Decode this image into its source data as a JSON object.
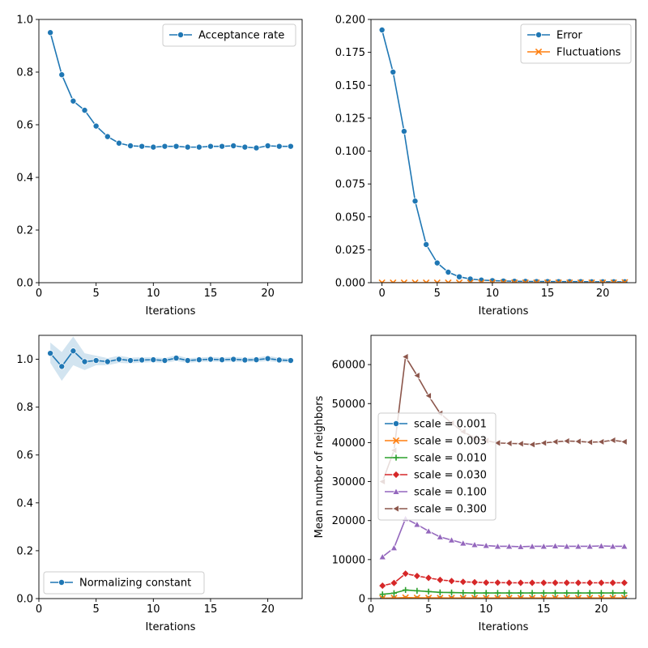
{
  "chart_data": [
    {
      "id": "acc",
      "type": "line",
      "title": "",
      "xlabel": "Iterations",
      "ylabel": "",
      "xlim": [
        0,
        23
      ],
      "ylim": [
        0,
        1
      ],
      "xticks": [
        0,
        5,
        10,
        15,
        20
      ],
      "yticks": [
        0.0,
        0.2,
        0.4,
        0.6,
        0.8,
        1.0
      ],
      "ytick_labels": [
        "0.0",
        "0.2",
        "0.4",
        "0.6",
        "0.8",
        "1.0"
      ],
      "legend_position": "upper right",
      "series": [
        {
          "name": "Acceptance rate",
          "color": "#1f77b4",
          "marker": "circle",
          "x": [
            1,
            2,
            3,
            4,
            5,
            6,
            7,
            8,
            9,
            10,
            11,
            12,
            13,
            14,
            15,
            16,
            17,
            18,
            19,
            20,
            21,
            22
          ],
          "values": [
            0.95,
            0.79,
            0.69,
            0.655,
            0.595,
            0.555,
            0.53,
            0.52,
            0.518,
            0.515,
            0.518,
            0.518,
            0.515,
            0.515,
            0.518,
            0.518,
            0.52,
            0.515,
            0.512,
            0.52,
            0.518,
            0.518
          ]
        }
      ]
    },
    {
      "id": "err",
      "type": "line",
      "title": "",
      "xlabel": "Iterations",
      "ylabel": "",
      "xlim": [
        -1,
        23
      ],
      "ylim": [
        0,
        0.2
      ],
      "xticks": [
        0,
        5,
        10,
        15,
        20
      ],
      "yticks": [
        0.0,
        0.025,
        0.05,
        0.075,
        0.1,
        0.125,
        0.15,
        0.175,
        0.2
      ],
      "ytick_labels": [
        "0.000",
        "0.025",
        "0.050",
        "0.075",
        "0.100",
        "0.125",
        "0.150",
        "0.175",
        "0.200"
      ],
      "legend_position": "upper right",
      "series": [
        {
          "name": "Error",
          "color": "#1f77b4",
          "marker": "circle",
          "x": [
            0,
            1,
            2,
            3,
            4,
            5,
            6,
            7,
            8,
            9,
            10,
            11,
            12,
            13,
            14,
            15,
            16,
            17,
            18,
            19,
            20,
            21,
            22
          ],
          "values": [
            0.192,
            0.16,
            0.115,
            0.062,
            0.029,
            0.015,
            0.008,
            0.0045,
            0.0028,
            0.002,
            0.0016,
            0.0013,
            0.0011,
            0.001,
            0.0009,
            0.0009,
            0.0008,
            0.0008,
            0.0008,
            0.0007,
            0.0007,
            0.0007,
            0.0007
          ]
        },
        {
          "name": "Fluctuations",
          "color": "#ff7f0e",
          "marker": "x",
          "x": [
            0,
            1,
            2,
            3,
            4,
            5,
            6,
            7,
            8,
            9,
            10,
            11,
            12,
            13,
            14,
            15,
            16,
            17,
            18,
            19,
            20,
            21,
            22
          ],
          "values": [
            0,
            0,
            0,
            0,
            0,
            0,
            0,
            0,
            0,
            0,
            0,
            0,
            0,
            0,
            0,
            0,
            0,
            0,
            0,
            0,
            0,
            0,
            0.0002
          ]
        }
      ]
    },
    {
      "id": "norm",
      "type": "line",
      "title": "",
      "xlabel": "Iterations",
      "ylabel": "",
      "xlim": [
        0,
        23
      ],
      "ylim": [
        0,
        1.1
      ],
      "xticks": [
        0,
        5,
        10,
        15,
        20
      ],
      "yticks": [
        0.0,
        0.2,
        0.4,
        0.6,
        0.8,
        1.0
      ],
      "ytick_labels": [
        "0.0",
        "0.2",
        "0.4",
        "0.6",
        "0.8",
        "1.0"
      ],
      "legend_position": "lower left",
      "series": [
        {
          "name": "Normalizing constant",
          "color": "#1f77b4",
          "marker": "circle",
          "x": [
            1,
            2,
            3,
            4,
            5,
            6,
            7,
            8,
            9,
            10,
            11,
            12,
            13,
            14,
            15,
            16,
            17,
            18,
            19,
            20,
            21,
            22
          ],
          "values": [
            1.025,
            0.97,
            1.035,
            0.99,
            0.995,
            0.99,
            1.0,
            0.995,
            0.997,
            0.998,
            0.995,
            1.005,
            0.995,
            0.998,
            1.0,
            0.998,
            1.0,
            0.997,
            0.998,
            1.003,
            0.997,
            0.995
          ],
          "band_low": [
            0.985,
            0.91,
            0.975,
            0.955,
            0.975,
            0.975,
            0.985,
            0.983,
            0.986,
            0.988,
            0.985,
            0.993,
            0.985,
            0.989,
            0.99,
            0.989,
            0.99,
            0.988,
            0.989,
            0.992,
            0.988,
            0.986
          ],
          "band_high": [
            1.07,
            1.03,
            1.095,
            1.025,
            1.015,
            1.005,
            1.015,
            1.007,
            1.008,
            1.008,
            1.005,
            1.017,
            1.005,
            1.007,
            1.01,
            1.007,
            1.01,
            1.006,
            1.007,
            1.014,
            1.006,
            1.004
          ]
        }
      ]
    },
    {
      "id": "neigh",
      "type": "line",
      "title": "",
      "xlabel": "Iterations",
      "ylabel": "Mean number of neighbors",
      "xlim": [
        0,
        23
      ],
      "ylim": [
        0,
        67500
      ],
      "xticks": [
        0,
        5,
        10,
        15,
        20
      ],
      "yticks": [
        0,
        10000,
        20000,
        30000,
        40000,
        50000,
        60000
      ],
      "ytick_labels": [
        "0",
        "10000",
        "20000",
        "30000",
        "40000",
        "50000",
        "60000"
      ],
      "legend_position": "center left",
      "series": [
        {
          "name": "scale = 0.001",
          "color": "#1f77b4",
          "marker": "circle",
          "x": [
            1,
            2,
            3,
            4,
            5,
            6,
            7,
            8,
            9,
            10,
            11,
            12,
            13,
            14,
            15,
            16,
            17,
            18,
            19,
            20,
            21,
            22
          ],
          "values": [
            2,
            3,
            5,
            4,
            4,
            3,
            3,
            3,
            3,
            3,
            3,
            3,
            3,
            3,
            3,
            3,
            3,
            3,
            3,
            3,
            3,
            3
          ]
        },
        {
          "name": "scale = 0.003",
          "color": "#ff7f0e",
          "marker": "x",
          "x": [
            1,
            2,
            3,
            4,
            5,
            6,
            7,
            8,
            9,
            10,
            11,
            12,
            13,
            14,
            15,
            16,
            17,
            18,
            19,
            20,
            21,
            22
          ],
          "values": [
            100,
            150,
            250,
            200,
            180,
            160,
            150,
            150,
            150,
            150,
            150,
            150,
            150,
            150,
            150,
            150,
            150,
            150,
            150,
            150,
            150,
            150
          ]
        },
        {
          "name": "scale = 0.010",
          "color": "#2ca02c",
          "marker": "plus",
          "x": [
            1,
            2,
            3,
            4,
            5,
            6,
            7,
            8,
            9,
            10,
            11,
            12,
            13,
            14,
            15,
            16,
            17,
            18,
            19,
            20,
            21,
            22
          ],
          "values": [
            1100,
            1400,
            2200,
            2000,
            1800,
            1600,
            1550,
            1500,
            1450,
            1450,
            1450,
            1450,
            1450,
            1450,
            1450,
            1450,
            1450,
            1450,
            1450,
            1450,
            1450,
            1450
          ]
        },
        {
          "name": "scale = 0.030",
          "color": "#d62728",
          "marker": "diamond",
          "x": [
            1,
            2,
            3,
            4,
            5,
            6,
            7,
            8,
            9,
            10,
            11,
            12,
            13,
            14,
            15,
            16,
            17,
            18,
            19,
            20,
            21,
            22
          ],
          "values": [
            3300,
            4000,
            6400,
            5800,
            5300,
            4800,
            4500,
            4300,
            4200,
            4100,
            4100,
            4050,
            4050,
            4050,
            4050,
            4050,
            4050,
            4050,
            4050,
            4050,
            4050,
            4050
          ]
        },
        {
          "name": "scale = 0.100",
          "color": "#9467bd",
          "marker": "triangle",
          "x": [
            1,
            2,
            3,
            4,
            5,
            6,
            7,
            8,
            9,
            10,
            11,
            12,
            13,
            14,
            15,
            16,
            17,
            18,
            19,
            20,
            21,
            22
          ],
          "values": [
            10700,
            13000,
            20500,
            19000,
            17300,
            15800,
            15000,
            14200,
            13800,
            13600,
            13400,
            13400,
            13300,
            13400,
            13400,
            13500,
            13400,
            13400,
            13400,
            13500,
            13400,
            13400
          ]
        },
        {
          "name": "scale = 0.300",
          "color": "#8c564b",
          "marker": "triangle-left",
          "x": [
            1,
            2,
            3,
            4,
            5,
            6,
            7,
            8,
            9,
            10,
            11,
            12,
            13,
            14,
            15,
            16,
            17,
            18,
            19,
            20,
            21,
            22
          ],
          "values": [
            30000,
            38000,
            62000,
            57200,
            52000,
            47500,
            45000,
            42800,
            41200,
            40500,
            39900,
            39800,
            39700,
            39500,
            39900,
            40200,
            40400,
            40300,
            40100,
            40200,
            40600,
            40200
          ]
        }
      ]
    }
  ]
}
